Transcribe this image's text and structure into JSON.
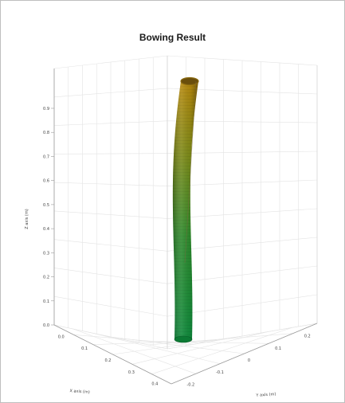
{
  "chart_data": {
    "type": "surface3d",
    "title": "Bowing Result",
    "xlabel": "X axis (m)",
    "ylabel": "Y axis (m)",
    "zlabel": "Z axis (m)",
    "grid": true,
    "z_ticks": [
      "0.9",
      "0.8",
      "0.7",
      "0.6",
      "0.5",
      "0.4",
      "0.3",
      "0.2",
      "0.1",
      "0.0"
    ],
    "x_ticks": [
      "0.0",
      "0.1",
      "0.2",
      "0.3",
      "0.4"
    ],
    "y_ticks": [
      "-0.2",
      "-0.1",
      "0",
      "0.1",
      "0.2"
    ],
    "tube": {
      "description_colors": {
        "bottom": "#0f8a3c",
        "middle": "#5f8f1c",
        "top": "#b88a0e",
        "rim": "#8a6a10"
      },
      "top_offset": 0.3
    }
  }
}
